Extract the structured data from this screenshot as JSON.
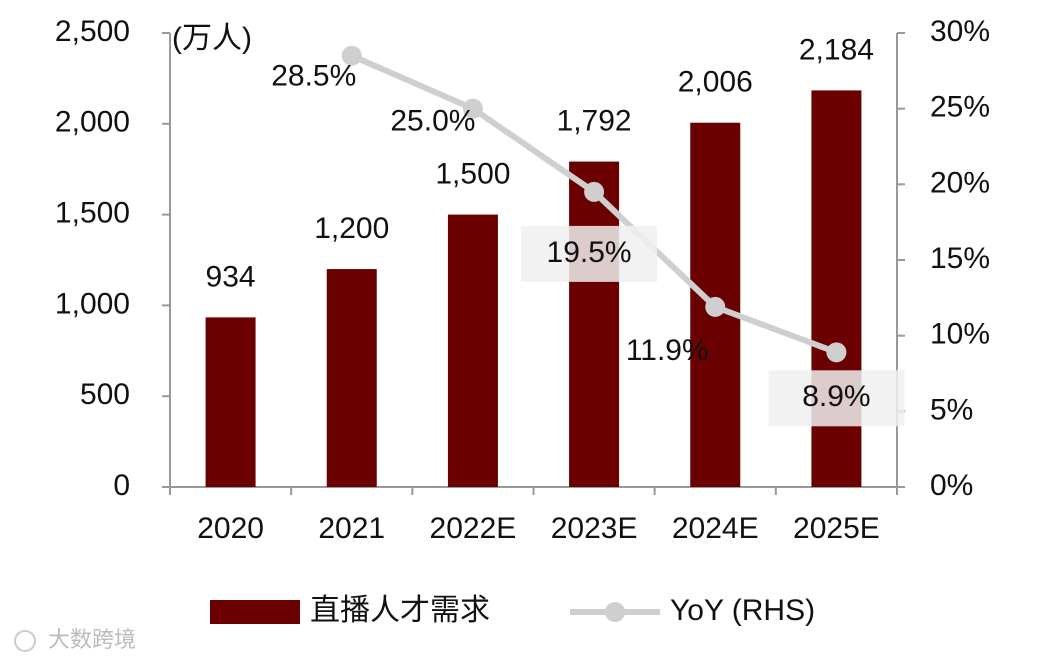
{
  "chart_data": {
    "type": "bar_line",
    "annotations": [
      "(万人)",
      "大数跨境"
    ],
    "categories": [
      "2020",
      "2021",
      "2022E",
      "2023E",
      "2024E",
      "2025E"
    ],
    "series": [
      {
        "name": "直播人才需求",
        "type": "bar",
        "color": "#6b0000",
        "axis": "y",
        "values": [
          934,
          1200,
          1500,
          1792,
          2006,
          2184
        ],
        "value_labels": [
          "934",
          "1,200",
          "1,500",
          "1,792",
          "2,006",
          "2,184"
        ]
      },
      {
        "name": "YoY (RHS)",
        "type": "line",
        "color": "#cfcfcf",
        "axis": "y2",
        "values": [
          null,
          28.5,
          25.0,
          19.5,
          11.9,
          8.9
        ],
        "value_labels": [
          null,
          "28.5%",
          "25.0%",
          "19.5%",
          "11.9%",
          "8.9%"
        ]
      }
    ],
    "ylim": [
      0,
      2500
    ],
    "yticks": [
      0,
      500,
      {
        "value": 1000,
        "label": "1,000"
      },
      {
        "value": 1500,
        "label": "1,500"
      },
      {
        "value": 2000,
        "label": "2,000"
      },
      {
        "value": 2500,
        "label": "2,500"
      }
    ],
    "y2lim": [
      0,
      30
    ],
    "y2ticks": [
      {
        "value": 0,
        "label": "0%"
      },
      {
        "value": 5,
        "label": "5%"
      },
      {
        "value": 10,
        "label": "10%"
      },
      {
        "value": 15,
        "label": "15%"
      },
      {
        "value": 20,
        "label": "20%"
      },
      {
        "value": 25,
        "label": "25%"
      },
      {
        "value": 30,
        "label": "30%"
      }
    ],
    "grid": false
  }
}
